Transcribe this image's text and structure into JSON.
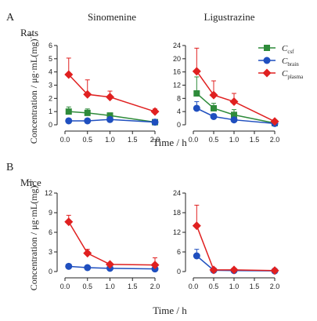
{
  "figure": {
    "panel_a": "A",
    "panel_b": "B",
    "col_left": "Sinomenine",
    "col_right": "Ligustrazine",
    "row_a": "Rats",
    "row_b": "Mice",
    "xlabel": "Time / h",
    "ylabel": "Concentration / μg·mL(mg)",
    "ylabel_sup": "-1",
    "legend": [
      {
        "main": "C",
        "sub": "csf"
      },
      {
        "main": "C",
        "sub": "brain"
      },
      {
        "main": "C",
        "sub": "plasma"
      }
    ]
  },
  "colors": {
    "csf": "#2e8b3a",
    "brain": "#1f4fbf",
    "plasma": "#e02020"
  },
  "chart_data": [
    {
      "type": "line",
      "panel": "A",
      "title": "Sinomenine",
      "organism": "Rats",
      "x": [
        0.083,
        0.5,
        1.0,
        2.0
      ],
      "xlim": [
        0,
        2
      ],
      "ylim": [
        0,
        6
      ],
      "xticks": [
        "0.0",
        "0.5",
        "1.0",
        "1.5",
        "2.0"
      ],
      "yticks": [
        "0",
        "1",
        "2",
        "3",
        "4",
        "5",
        "6"
      ],
      "series": [
        {
          "key": "csf",
          "marker": "square",
          "values": [
            1.0,
            0.9,
            0.7,
            0.2
          ],
          "err": [
            0.35,
            0.3,
            0.2,
            0
          ]
        },
        {
          "key": "brain",
          "marker": "circle",
          "values": [
            0.3,
            0.3,
            0.4,
            0.2
          ],
          "err": [
            0.1,
            0.1,
            0.15,
            0
          ]
        },
        {
          "key": "plasma",
          "marker": "diamond",
          "values": [
            3.8,
            2.3,
            2.1,
            1.0
          ],
          "err": [
            1.25,
            1.1,
            0.45,
            0.2
          ]
        }
      ]
    },
    {
      "type": "line",
      "panel": "A",
      "title": "Ligustrazine",
      "organism": "Rats",
      "x": [
        0.083,
        0.5,
        1.0,
        2.0
      ],
      "xlim": [
        0,
        2
      ],
      "ylim": [
        0,
        24
      ],
      "xticks": [
        "0.0",
        "0.5",
        "1.0",
        "1.5",
        "2.0"
      ],
      "yticks": [
        "0",
        "4",
        "8",
        "12",
        "16",
        "20",
        "24"
      ],
      "series": [
        {
          "key": "csf",
          "marker": "square",
          "values": [
            9.5,
            5.0,
            3.0,
            0.5
          ],
          "err": [
            5.0,
            1.5,
            1.6,
            0.3
          ]
        },
        {
          "key": "brain",
          "marker": "circle",
          "values": [
            5.0,
            2.5,
            1.5,
            0.4
          ],
          "err": [
            2.0,
            0.8,
            0.5,
            0.2
          ]
        },
        {
          "key": "plasma",
          "marker": "diamond",
          "values": [
            16.2,
            9.0,
            7.0,
            1.0
          ],
          "err": [
            7.0,
            4.3,
            2.5,
            0.3
          ]
        }
      ]
    },
    {
      "type": "line",
      "panel": "B",
      "title": "",
      "organism": "Mice",
      "x": [
        0.083,
        0.5,
        1.0,
        2.0
      ],
      "xlim": [
        0,
        2
      ],
      "ylim": [
        0,
        12
      ],
      "xticks": [
        "0.0",
        "0.5",
        "1.0",
        "1.5",
        "2.0"
      ],
      "yticks": [
        "0",
        "3",
        "6",
        "9",
        "12"
      ],
      "series": [
        {
          "key": "brain",
          "marker": "circle",
          "values": [
            0.8,
            0.6,
            0.5,
            0.4
          ],
          "err": [
            0.1,
            0.1,
            0.1,
            0.1
          ]
        },
        {
          "key": "plasma",
          "marker": "diamond",
          "values": [
            7.6,
            2.8,
            1.1,
            1.0
          ],
          "err": [
            1.0,
            0.6,
            0.1,
            1.1
          ]
        }
      ]
    },
    {
      "type": "line",
      "panel": "B",
      "title": "",
      "organism": "Mice",
      "x": [
        0.083,
        0.5,
        1.0,
        2.0
      ],
      "xlim": [
        0,
        2
      ],
      "ylim": [
        0,
        24
      ],
      "xticks": [
        "0.0",
        "0.5",
        "1.0",
        "1.5",
        "2.0"
      ],
      "yticks": [
        "0",
        "6",
        "12",
        "18",
        "24"
      ],
      "series": [
        {
          "key": "brain",
          "marker": "circle",
          "values": [
            4.8,
            0.4,
            0.3,
            0.2
          ],
          "err": [
            2.0,
            0.2,
            0.1,
            0.1
          ]
        },
        {
          "key": "plasma",
          "marker": "diamond",
          "values": [
            14.0,
            0.5,
            0.5,
            0.3
          ],
          "err": [
            6.3,
            0.2,
            0.2,
            0.1
          ]
        }
      ]
    }
  ]
}
